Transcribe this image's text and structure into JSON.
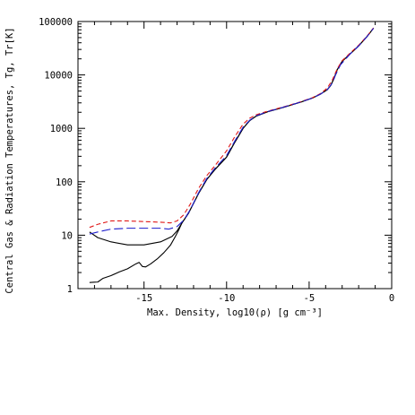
{
  "chart_data": {
    "type": "line",
    "title": "",
    "xlabel": "Max. Density, log10(ρ) [g cm⁻³]",
    "ylabel": "Central Gas & Radiation Temperatures, Tg, Tr[K]",
    "xlim": [
      -19,
      0
    ],
    "ylim": [
      1,
      100000
    ],
    "yscale": "log",
    "grid": false,
    "x_ticks": [
      "-15",
      "-10",
      "-5",
      "0"
    ],
    "y_ticks": [
      "1",
      "10",
      "100",
      "1000",
      "10000",
      "100000"
    ],
    "colors": {
      "black": "#000000",
      "red": "#e01818",
      "blue": "#1c1ccc"
    },
    "series": [
      {
        "style": "solid",
        "color": "black",
        "points": [
          [
            -18.3,
            11.5
          ],
          [
            -17.8,
            9.0
          ],
          [
            -17.0,
            7.5
          ],
          [
            -16.0,
            6.6
          ],
          [
            -15.0,
            6.6
          ],
          [
            -14.0,
            7.5
          ],
          [
            -13.3,
            9.5
          ],
          [
            -13.0,
            12.0
          ],
          [
            -12.7,
            17.0
          ],
          [
            -12.3,
            26.0
          ],
          [
            -11.7,
            60.0
          ],
          [
            -11.2,
            110.0
          ],
          [
            -10.7,
            170.0
          ],
          [
            -10.0,
            290.0
          ],
          [
            -9.5,
            550.0
          ],
          [
            -9.0,
            1000.0
          ],
          [
            -8.6,
            1400.0
          ],
          [
            -8.2,
            1700.0
          ],
          [
            -7.5,
            2050.0
          ],
          [
            -6.5,
            2500.0
          ],
          [
            -5.5,
            3100.0
          ],
          [
            -4.8,
            3700.0
          ],
          [
            -4.3,
            4400.0
          ],
          [
            -3.9,
            5300.0
          ],
          [
            -3.7,
            6300.0
          ],
          [
            -3.5,
            8500.0
          ],
          [
            -3.3,
            12500.0
          ],
          [
            -3.0,
            18000.0
          ],
          [
            -2.5,
            25000.0
          ],
          [
            -2.0,
            35000.0
          ],
          [
            -1.5,
            52000.0
          ],
          [
            -1.1,
            75000.0
          ]
        ]
      },
      {
        "style": "solid",
        "color": "black",
        "points": [
          [
            -18.3,
            1.3
          ],
          [
            -18.0,
            1.32
          ],
          [
            -17.8,
            1.33
          ],
          [
            -17.5,
            1.55
          ],
          [
            -17.0,
            1.75
          ],
          [
            -16.5,
            2.05
          ],
          [
            -16.0,
            2.35
          ],
          [
            -15.5,
            2.9
          ],
          [
            -15.3,
            3.1
          ],
          [
            -15.1,
            2.6
          ],
          [
            -14.9,
            2.55
          ],
          [
            -14.6,
            2.9
          ],
          [
            -14.2,
            3.6
          ],
          [
            -13.8,
            4.7
          ],
          [
            -13.4,
            6.5
          ],
          [
            -13.1,
            9.5
          ],
          [
            -12.9,
            12.5
          ],
          [
            -12.7,
            17.0
          ],
          [
            -12.3,
            26.0
          ],
          [
            -11.7,
            60.0
          ],
          [
            -11.2,
            110.0
          ],
          [
            -10.7,
            170.0
          ],
          [
            -10.0,
            290.0
          ],
          [
            -9.5,
            550.0
          ],
          [
            -9.0,
            1000.0
          ],
          [
            -8.6,
            1400.0
          ],
          [
            -8.2,
            1700.0
          ],
          [
            -7.5,
            2050.0
          ],
          [
            -6.5,
            2500.0
          ],
          [
            -5.5,
            3100.0
          ],
          [
            -4.8,
            3700.0
          ],
          [
            -4.3,
            4400.0
          ],
          [
            -3.9,
            5300.0
          ],
          [
            -3.7,
            6300.0
          ],
          [
            -3.5,
            8500.0
          ],
          [
            -3.3,
            12500.0
          ],
          [
            -3.0,
            18000.0
          ],
          [
            -2.5,
            25000.0
          ],
          [
            -2.0,
            35000.0
          ],
          [
            -1.5,
            52000.0
          ],
          [
            -1.1,
            75000.0
          ]
        ]
      },
      {
        "style": "short-dash",
        "color": "red",
        "points": [
          [
            -18.3,
            14.0
          ],
          [
            -17.8,
            16.0
          ],
          [
            -17.0,
            18.5
          ],
          [
            -16.0,
            18.5
          ],
          [
            -15.0,
            18.0
          ],
          [
            -14.0,
            17.5
          ],
          [
            -13.4,
            17.0
          ],
          [
            -13.0,
            18.5
          ],
          [
            -12.6,
            24.0
          ],
          [
            -12.2,
            38.0
          ],
          [
            -11.7,
            75.0
          ],
          [
            -11.2,
            130.0
          ],
          [
            -10.6,
            220.0
          ],
          [
            -10.0,
            380.0
          ],
          [
            -9.5,
            700.0
          ],
          [
            -9.0,
            1200.0
          ],
          [
            -8.6,
            1550.0
          ],
          [
            -8.2,
            1800.0
          ],
          [
            -7.5,
            2100.0
          ],
          [
            -6.5,
            2550.0
          ],
          [
            -5.5,
            3150.0
          ],
          [
            -4.8,
            3750.0
          ],
          [
            -4.3,
            4500.0
          ],
          [
            -3.9,
            5700.0
          ],
          [
            -3.6,
            8000.0
          ],
          [
            -3.3,
            13000.0
          ],
          [
            -3.0,
            18500.0
          ],
          [
            -2.5,
            26000.0
          ],
          [
            -2.0,
            36000.0
          ],
          [
            -1.5,
            53000.0
          ],
          [
            -1.1,
            76000.0
          ]
        ]
      },
      {
        "style": "long-dash",
        "color": "blue",
        "points": [
          [
            -18.3,
            10.5
          ],
          [
            -17.8,
            11.5
          ],
          [
            -17.0,
            13.0
          ],
          [
            -16.0,
            13.5
          ],
          [
            -15.0,
            13.5
          ],
          [
            -14.0,
            13.5
          ],
          [
            -13.5,
            13.0
          ],
          [
            -13.0,
            14.5
          ],
          [
            -12.6,
            19.0
          ],
          [
            -12.2,
            30.0
          ],
          [
            -11.7,
            62.0
          ],
          [
            -11.2,
            115.0
          ],
          [
            -10.7,
            180.0
          ],
          [
            -10.0,
            310.0
          ],
          [
            -9.5,
            580.0
          ],
          [
            -9.0,
            1050.0
          ],
          [
            -8.6,
            1420.0
          ],
          [
            -8.2,
            1720.0
          ],
          [
            -7.5,
            2070.0
          ],
          [
            -6.5,
            2520.0
          ],
          [
            -5.5,
            3120.0
          ],
          [
            -4.8,
            3700.0
          ],
          [
            -4.3,
            4400.0
          ],
          [
            -3.9,
            5300.0
          ],
          [
            -3.6,
            7000.0
          ],
          [
            -3.4,
            10000.0
          ],
          [
            -3.1,
            15500.0
          ],
          [
            -2.5,
            25000.0
          ],
          [
            -2.0,
            35000.0
          ],
          [
            -1.5,
            52000.0
          ],
          [
            -1.1,
            75000.0
          ]
        ]
      }
    ]
  }
}
